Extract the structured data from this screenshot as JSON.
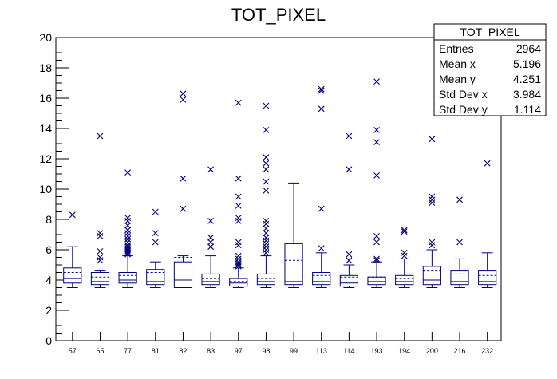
{
  "chart_data": {
    "type": "box",
    "title": "TOT_PIXEL",
    "xlabel": "",
    "ylabel": "",
    "ylim": [
      0,
      20
    ],
    "yticks": [
      0,
      2,
      4,
      6,
      8,
      10,
      12,
      14,
      16,
      18,
      20
    ],
    "grid": false,
    "series_color": "#000080",
    "categories": [
      "57",
      "65",
      "77",
      "81",
      "82",
      "83",
      "97",
      "98",
      "99",
      "113",
      "114",
      "193",
      "194",
      "200",
      "216",
      "232"
    ],
    "boxes": [
      {
        "category": "57",
        "min": 3.5,
        "q1": 3.8,
        "median": 4.1,
        "mean": 4.5,
        "q3": 4.8,
        "max": 6.2,
        "outliers": [
          8.3
        ]
      },
      {
        "category": "65",
        "min": 3.5,
        "q1": 3.7,
        "median": 3.9,
        "mean": 4.2,
        "q3": 4.5,
        "max": 4.6,
        "outliers": [
          5.3,
          5.5,
          5.9,
          6.9,
          7.1,
          13.5
        ]
      },
      {
        "category": "77",
        "min": 3.5,
        "q1": 3.8,
        "median": 4.0,
        "mean": 4.3,
        "q3": 4.5,
        "max": 5.6,
        "outliers": [
          5.7,
          5.8,
          5.9,
          6.0,
          6.1,
          6.2,
          6.3,
          6.5,
          6.7,
          6.9,
          7.1,
          7.3,
          7.6,
          7.9,
          8.1,
          11.1
        ]
      },
      {
        "category": "81",
        "min": 3.5,
        "q1": 3.7,
        "median": 3.9,
        "mean": 4.5,
        "q3": 4.7,
        "max": 5.2,
        "outliers": [
          6.5,
          7.1,
          8.5
        ]
      },
      {
        "category": "82",
        "min": 3.5,
        "q1": 3.5,
        "median": 4.0,
        "mean": 5.5,
        "q3": 5.2,
        "max": 5.6,
        "outliers": [
          8.7,
          10.7,
          15.9,
          16.3
        ]
      },
      {
        "category": "83",
        "min": 3.5,
        "q1": 3.7,
        "median": 3.9,
        "mean": 4.1,
        "q3": 4.4,
        "max": 5.6,
        "outliers": [
          6.2,
          6.5,
          6.8,
          7.9,
          11.3
        ]
      },
      {
        "category": "97",
        "min": 3.5,
        "q1": 3.6,
        "median": 3.8,
        "mean": 3.9,
        "q3": 4.1,
        "max": 4.8,
        "outliers": [
          4.9,
          5.0,
          5.1,
          5.2,
          5.4,
          5.6,
          6.3,
          6.5,
          7.9,
          8.1,
          8.9,
          9.5,
          10.7,
          15.7
        ]
      },
      {
        "category": "98",
        "min": 3.5,
        "q1": 3.7,
        "median": 3.9,
        "mean": 4.1,
        "q3": 4.4,
        "max": 5.6,
        "outliers": [
          5.8,
          6.0,
          6.2,
          6.4,
          6.6,
          6.8,
          7.1,
          7.4,
          7.7,
          7.9,
          9.9,
          10.5,
          11.3,
          11.7,
          12.1,
          13.9,
          15.5
        ]
      },
      {
        "category": "99",
        "min": 3.5,
        "q1": 3.7,
        "median": 3.9,
        "mean": 5.3,
        "q3": 6.4,
        "max": 10.4,
        "outliers": []
      },
      {
        "category": "113",
        "min": 3.5,
        "q1": 3.7,
        "median": 3.9,
        "mean": 4.3,
        "q3": 4.5,
        "max": 5.8,
        "outliers": [
          6.1,
          8.7,
          15.3,
          16.5,
          16.6
        ]
      },
      {
        "category": "114",
        "min": 3.5,
        "q1": 3.6,
        "median": 3.8,
        "mean": 4.2,
        "q3": 4.3,
        "max": 5.0,
        "outliers": [
          5.3,
          5.7,
          11.3,
          13.5
        ]
      },
      {
        "category": "193",
        "min": 3.5,
        "q1": 3.7,
        "median": 3.9,
        "mean": 4.2,
        "q3": 4.2,
        "max": 5.2,
        "outliers": [
          5.3,
          5.4,
          6.5,
          6.9,
          10.9,
          13.1,
          13.9,
          17.1
        ]
      },
      {
        "category": "194",
        "min": 3.5,
        "q1": 3.7,
        "median": 3.9,
        "mean": 4.1,
        "q3": 4.3,
        "max": 5.4,
        "outliers": [
          5.6,
          5.8,
          7.2,
          7.3
        ]
      },
      {
        "category": "200",
        "min": 3.5,
        "q1": 3.7,
        "median": 4.0,
        "mean": 4.6,
        "q3": 4.9,
        "max": 6.0,
        "outliers": [
          6.3,
          6.5,
          9.1,
          9.3,
          9.5,
          13.3
        ]
      },
      {
        "category": "216",
        "min": 3.5,
        "q1": 3.7,
        "median": 3.9,
        "mean": 4.4,
        "q3": 4.6,
        "max": 5.4,
        "outliers": [
          6.5,
          9.3
        ]
      },
      {
        "category": "232",
        "min": 3.5,
        "q1": 3.7,
        "median": 3.9,
        "mean": 4.3,
        "q3": 4.6,
        "max": 5.8,
        "outliers": [
          11.7
        ]
      }
    ],
    "stats_box": {
      "title": "TOT_PIXEL",
      "rows": [
        {
          "label": "Entries",
          "value": "2964"
        },
        {
          "label": "Mean x",
          "value": "5.196"
        },
        {
          "label": "Mean y",
          "value": "4.251"
        },
        {
          "label": "Std Dev x",
          "value": "3.984"
        },
        {
          "label": "Std Dev y",
          "value": "1.114"
        }
      ]
    }
  }
}
